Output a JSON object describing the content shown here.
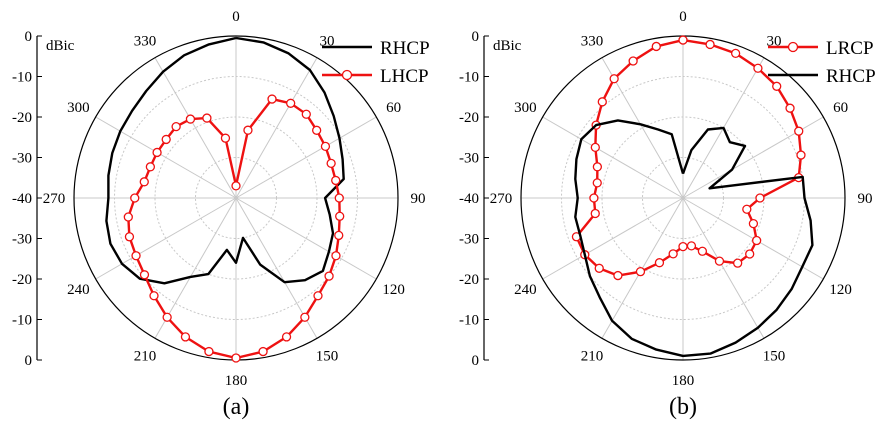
{
  "chart_data": [
    {
      "type": "polar-line",
      "panel_label": "(a)",
      "unit_label": "dBic",
      "r_range": [
        -40,
        0
      ],
      "r_ticks_upper": [
        "0",
        "-10",
        "-20",
        "-30",
        "-40"
      ],
      "r_ticks_lower": [
        "-30",
        "-20",
        "-10",
        "0"
      ],
      "angle_ticks": [
        "0",
        "30",
        "60",
        "90",
        "120",
        "150",
        "180",
        "210",
        "240",
        "270",
        "300",
        "330"
      ],
      "grid": true,
      "legend_position": "top-right",
      "series": [
        {
          "name": "RHCP",
          "color": "#000000",
          "marker": "none",
          "angles": [
            0,
            10,
            20,
            30,
            40,
            50,
            60,
            70,
            80,
            90,
            100,
            110,
            120,
            130,
            140,
            150,
            160,
            170,
            180,
            190,
            200,
            210,
            220,
            230,
            240,
            250,
            260,
            270,
            280,
            290,
            300,
            310,
            320,
            330,
            340,
            350,
            360
          ],
          "values": [
            -0.5,
            -1,
            -2,
            -3.5,
            -6,
            -8.5,
            -10.5,
            -12,
            -13,
            -18,
            -16.5,
            -14.5,
            -13.5,
            -12,
            -13.5,
            -16,
            -22.5,
            -30,
            -24,
            -27,
            -20,
            -17.5,
            -12.5,
            -9,
            -7.5,
            -7,
            -7.5,
            -8.5,
            -8,
            -7.5,
            -7,
            -6.5,
            -5.5,
            -4,
            -2.5,
            -1.5,
            -0.5
          ]
        },
        {
          "name": "LHCP",
          "color": "#ee1111",
          "marker": "circle",
          "angles": [
            0,
            10,
            20,
            30,
            40,
            50,
            60,
            70,
            80,
            90,
            100,
            110,
            120,
            130,
            140,
            150,
            160,
            170,
            180,
            190,
            200,
            210,
            220,
            230,
            240,
            250,
            260,
            270,
            280,
            290,
            300,
            310,
            320,
            330,
            340,
            350,
            360
          ],
          "values": [
            -37,
            -23,
            -14,
            -13,
            -13,
            -14,
            -14.5,
            -15,
            -15,
            -14.5,
            -14,
            -13,
            -11.5,
            -10,
            -8.5,
            -6,
            -3.5,
            -1.5,
            -0.5,
            -1.5,
            -3.5,
            -6,
            -8.5,
            -10.5,
            -11.5,
            -12,
            -13,
            -15,
            -17,
            -17.5,
            -17.5,
            -17.5,
            -17,
            -17.5,
            -19,
            -25,
            -37
          ]
        }
      ]
    },
    {
      "type": "polar-line",
      "panel_label": "(b)",
      "unit_label": "dBic",
      "r_range": [
        -40,
        0
      ],
      "r_ticks_upper": [
        "0",
        "-10",
        "-20",
        "-30",
        "-40"
      ],
      "r_ticks_lower": [
        "-30",
        "-20",
        "-10",
        "0"
      ],
      "angle_ticks": [
        "0",
        "30",
        "60",
        "90",
        "120",
        "150",
        "180",
        "210",
        "240",
        "270",
        "300",
        "330"
      ],
      "grid": true,
      "legend_position": "top-right",
      "series": [
        {
          "name": "LRCP",
          "color": "#ee1111",
          "marker": "circle",
          "angles": [
            0,
            10,
            20,
            30,
            40,
            50,
            60,
            70,
            80,
            90,
            100,
            110,
            120,
            130,
            140,
            150,
            160,
            170,
            180,
            190,
            200,
            210,
            220,
            230,
            240,
            250,
            260,
            270,
            280,
            290,
            300,
            310,
            320,
            330,
            340,
            350,
            360
          ],
          "values": [
            -1,
            -1.5,
            -2,
            -3,
            -4,
            -5.5,
            -7,
            -9,
            -11,
            -21,
            -24,
            -21.5,
            -19,
            -18.5,
            -19,
            -22,
            -26,
            -28,
            -28,
            -26,
            -23,
            -19,
            -15,
            -13,
            -12,
            -12,
            -18,
            -18,
            -18.5,
            -17.5,
            -15,
            -12,
            -9,
            -6,
            -4,
            -2,
            -1
          ]
        },
        {
          "name": "RHCP",
          "color": "#000000",
          "marker": "none",
          "angles": [
            0,
            10,
            20,
            30,
            40,
            50,
            60,
            70,
            80,
            90,
            100,
            110,
            120,
            130,
            140,
            150,
            160,
            170,
            180,
            190,
            200,
            210,
            220,
            230,
            240,
            250,
            260,
            270,
            280,
            290,
            300,
            310,
            320,
            330,
            340,
            350,
            360
          ],
          "values": [
            -34,
            -28,
            -22,
            -20,
            -22,
            -20,
            -26,
            -33,
            -10,
            -10,
            -8,
            -6,
            -6,
            -5,
            -4,
            -3,
            -2,
            -1,
            -1,
            -2,
            -3,
            -5,
            -8,
            -10,
            -12,
            -13,
            -13,
            -14,
            -13,
            -12,
            -11,
            -12,
            -15,
            -19,
            -22,
            -24,
            -34
          ]
        }
      ]
    }
  ]
}
